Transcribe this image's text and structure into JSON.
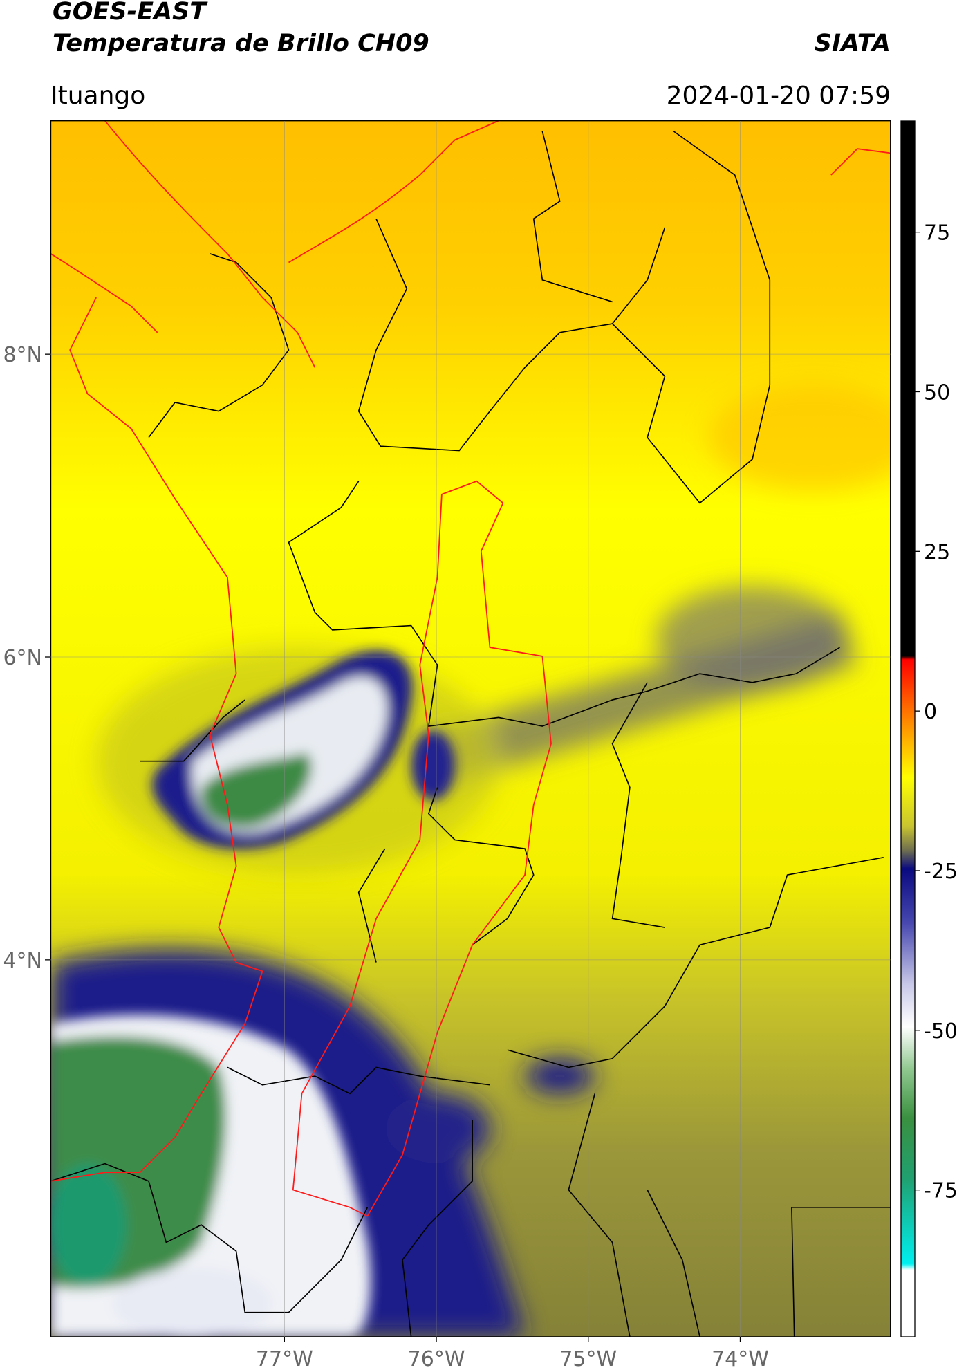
{
  "header": {
    "title": "GOES-EAST",
    "subtitle": "Temperatura de Brillo CH09",
    "source": "SIATA",
    "location": "Ituango",
    "timestamp": "2024-01-20 07:59"
  },
  "map": {
    "xlim": [
      -78.54,
      -73.01
    ],
    "ylim": [
      1.51,
      9.54
    ],
    "lon_ticks": [
      {
        "value": -77,
        "label": "77°W"
      },
      {
        "value": -76,
        "label": "76°W"
      },
      {
        "value": -75,
        "label": "75°W"
      },
      {
        "value": -74,
        "label": "74°W"
      }
    ],
    "lat_ticks": [
      {
        "value": 8,
        "label": "8°N"
      },
      {
        "value": 6,
        "label": "6°N"
      },
      {
        "value": 4,
        "label": "4°N"
      }
    ]
  },
  "colorbar": {
    "lim": [
      -98,
      92.4
    ],
    "ticks": [
      75,
      50,
      25,
      0,
      -25,
      -50,
      -75
    ]
  }
}
